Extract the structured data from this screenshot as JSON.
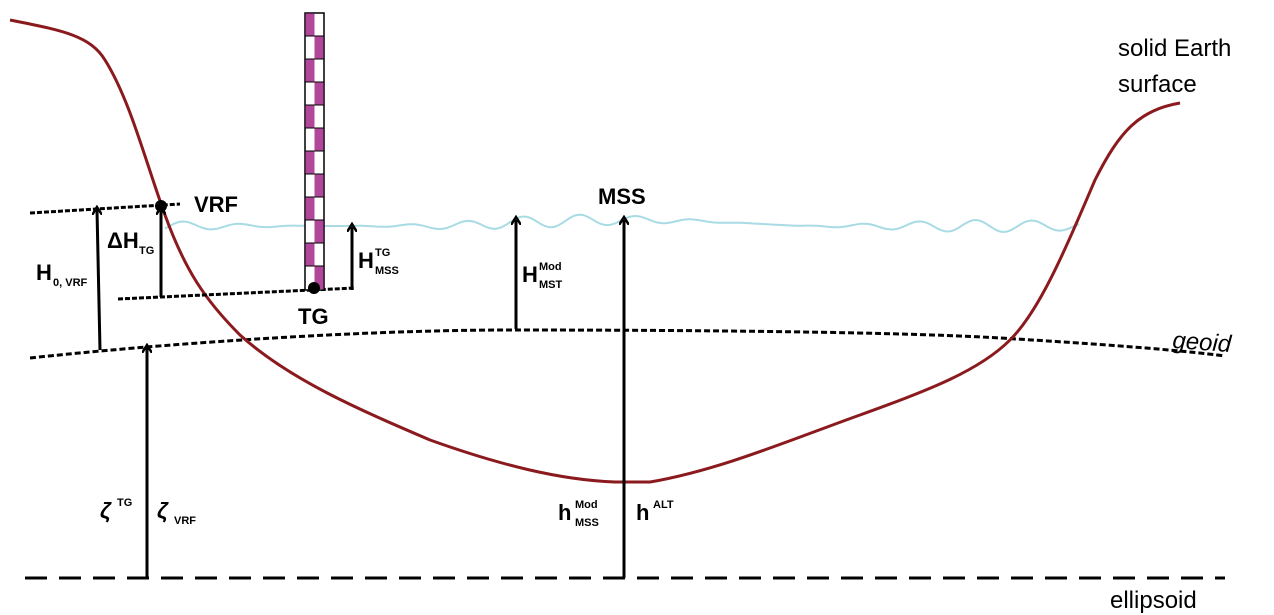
{
  "surface_label": [
    "solid Earth",
    "surface"
  ],
  "points": {
    "vrf": "VRF",
    "mss": "MSS",
    "tg": "TG"
  },
  "surfaces": {
    "geoid": "geoid",
    "ellipsoid": "ellipsoid"
  },
  "heights": [
    {
      "base": "H",
      "sub": "0, VRF"
    },
    {
      "base": "ΔH",
      "sub": "TG"
    },
    {
      "base": "H",
      "sup": "TG",
      "sub": "MSS"
    },
    {
      "base": "H",
      "sup": "Mod",
      "sub": "MST"
    },
    {
      "base": "ζ",
      "sup": "TG"
    },
    {
      "base": "ζ",
      "sub": "VRF"
    },
    {
      "base": "h",
      "sup": "Mod",
      "sub": "MSS"
    },
    {
      "base": "h",
      "sup": "ALT"
    }
  ]
}
